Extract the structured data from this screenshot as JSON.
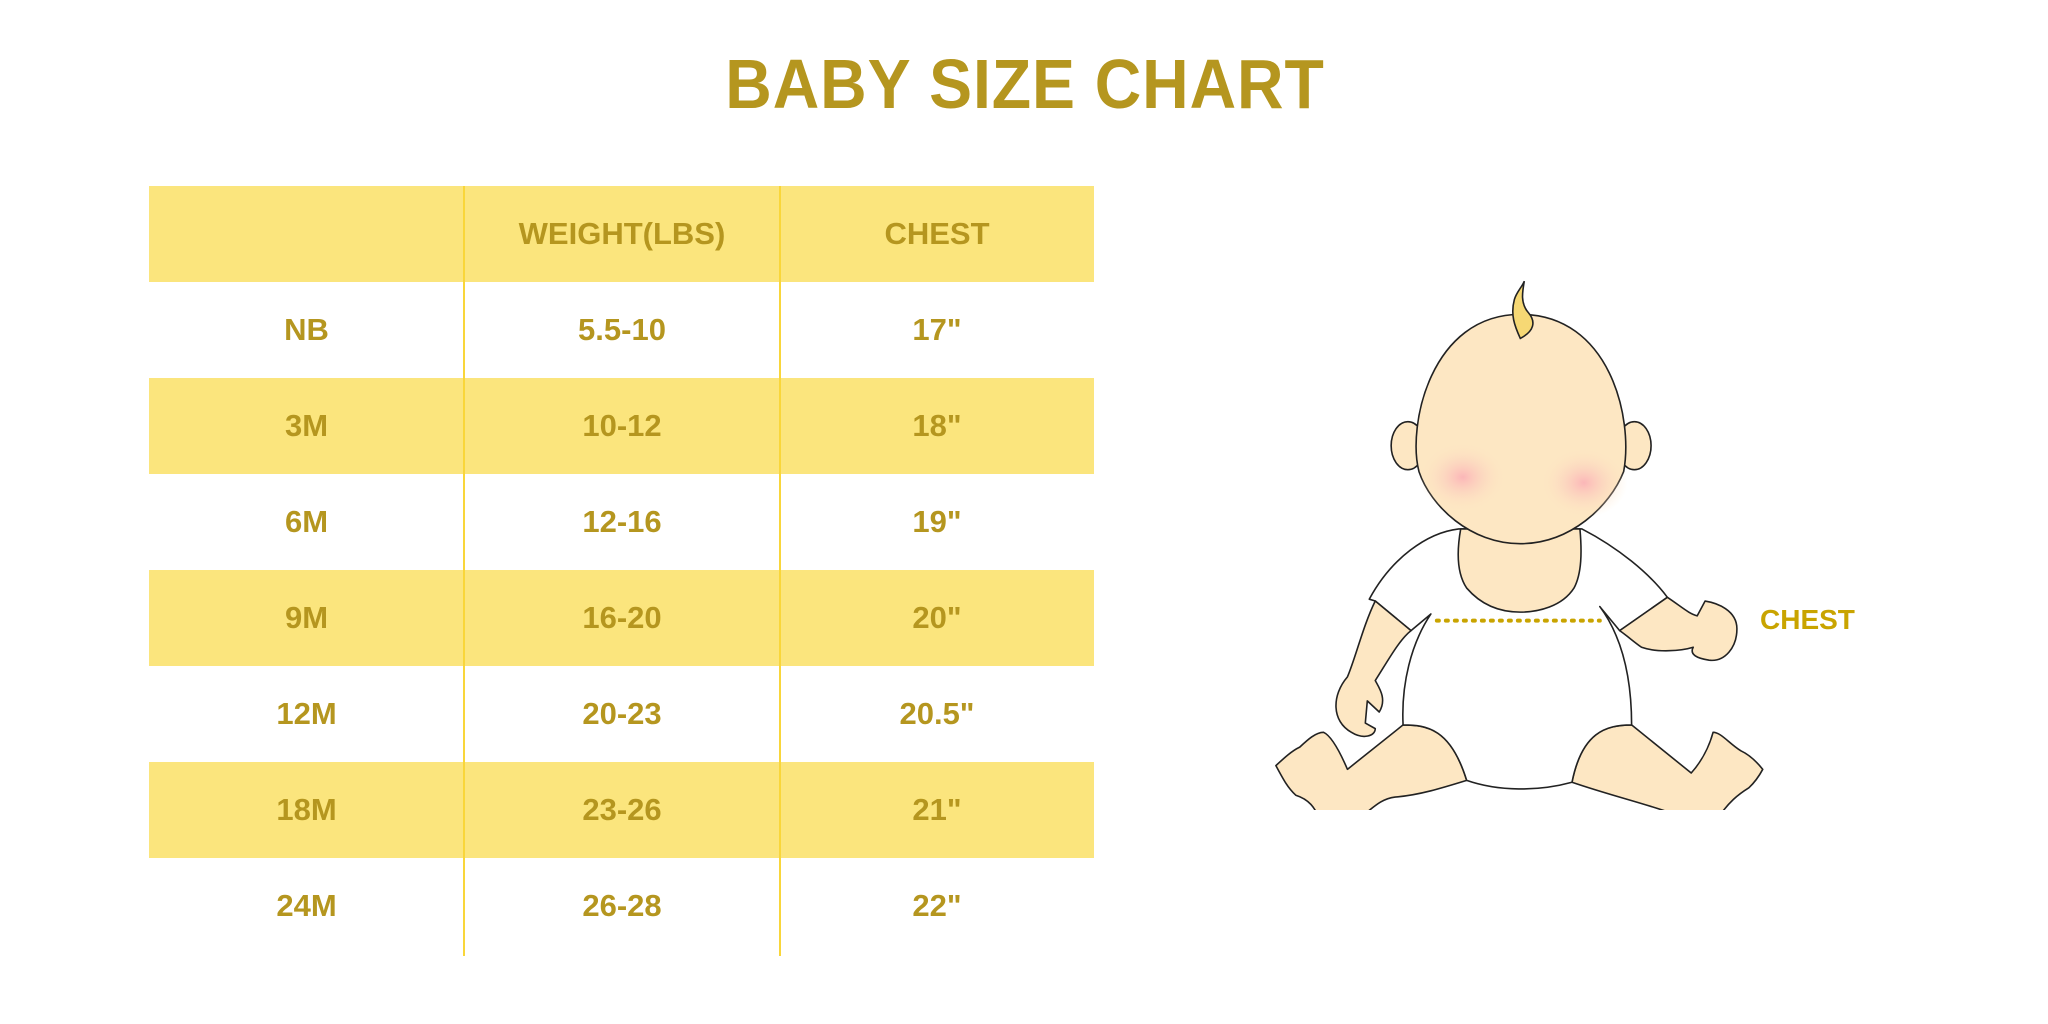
{
  "title": "BABY SIZE CHART",
  "table": {
    "headers": [
      "",
      "WEIGHT(LBS)",
      "CHEST"
    ],
    "rows": [
      [
        "NB",
        "5.5-10",
        "17\""
      ],
      [
        "3M",
        "10-12",
        "18\""
      ],
      [
        "6M",
        "12-16",
        "19\""
      ],
      [
        "9M",
        "16-20",
        "20\""
      ],
      [
        "12M",
        "20-23",
        "20.5\""
      ],
      [
        "18M",
        "23-26",
        "21\""
      ],
      [
        "24M",
        "26-28",
        "22\""
      ]
    ]
  },
  "illustration": {
    "label": "CHEST",
    "icon": "baby-illustration"
  },
  "colors": {
    "text": "#b5961f",
    "row_fill": "#fbe57d",
    "divider": "#f9d63a",
    "skin": "#fde7c3",
    "chest_line": "#c9a400"
  }
}
